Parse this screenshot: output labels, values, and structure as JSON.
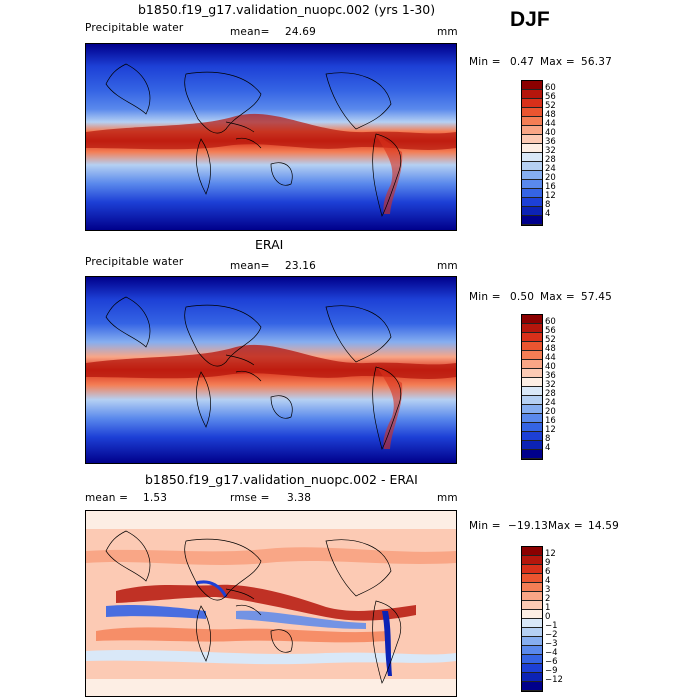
{
  "season": "DJF",
  "panels": [
    {
      "title": "b1850.f19_g17.validation_nuopc.002 (yrs 1-30)",
      "left_label": "Precipitable water",
      "mean_label": "mean=",
      "mean_value": "24.69",
      "units": "mm",
      "min_label": "Min =",
      "min_value": "0.47",
      "max_label": "Max =",
      "max_value": "56.37",
      "colorbar": {
        "labels": [
          "60",
          "56",
          "52",
          "48",
          "44",
          "40",
          "36",
          "32",
          "28",
          "24",
          "20",
          "16",
          "12",
          "8",
          "4"
        ],
        "colors": [
          "#8b0000",
          "#b5160c",
          "#d8301a",
          "#ea5530",
          "#f47e55",
          "#f9a686",
          "#fccab4",
          "#fdeee4",
          "#d9e8f8",
          "#b5d0f3",
          "#86aef0",
          "#5a89ec",
          "#3564e4",
          "#1d40d6",
          "#0c23b5",
          "#00008b"
        ]
      }
    },
    {
      "title": "ERAI",
      "left_label": "Precipitable water",
      "mean_label": "mean=",
      "mean_value": "23.16",
      "units": "mm",
      "min_label": "Min =",
      "min_value": "0.50",
      "max_label": "Max =",
      "max_value": "57.45",
      "colorbar": {
        "labels": [
          "60",
          "56",
          "52",
          "48",
          "44",
          "40",
          "36",
          "32",
          "28",
          "24",
          "20",
          "16",
          "12",
          "8",
          "4"
        ],
        "colors": [
          "#8b0000",
          "#b5160c",
          "#d8301a",
          "#ea5530",
          "#f47e55",
          "#f9a686",
          "#fccab4",
          "#fdeee4",
          "#d9e8f8",
          "#b5d0f3",
          "#86aef0",
          "#5a89ec",
          "#3564e4",
          "#1d40d6",
          "#0c23b5",
          "#00008b"
        ]
      }
    },
    {
      "title": "b1850.f19_g17.validation_nuopc.002 - ERAI",
      "mean_label": "mean =",
      "mean_value": "1.53",
      "rmse_label": "rmse =",
      "rmse_value": "3.38",
      "units": "mm",
      "min_label": "Min =",
      "min_value": "−19.13",
      "max_label": "Max =",
      "max_value": "14.59",
      "colorbar": {
        "labels": [
          "12",
          "9",
          "6",
          "4",
          "3",
          "2",
          "1",
          "0",
          "−1",
          "−2",
          "−3",
          "−4",
          "−6",
          "−9",
          "−12"
        ],
        "colors": [
          "#8b0000",
          "#b5160c",
          "#d8301a",
          "#ea5530",
          "#f47e55",
          "#f9a686",
          "#fccab4",
          "#fdeee4",
          "#d9e8f8",
          "#b5d0f3",
          "#86aef0",
          "#5a89ec",
          "#3564e4",
          "#1d40d6",
          "#0c23b5",
          "#00008b"
        ]
      }
    }
  ]
}
